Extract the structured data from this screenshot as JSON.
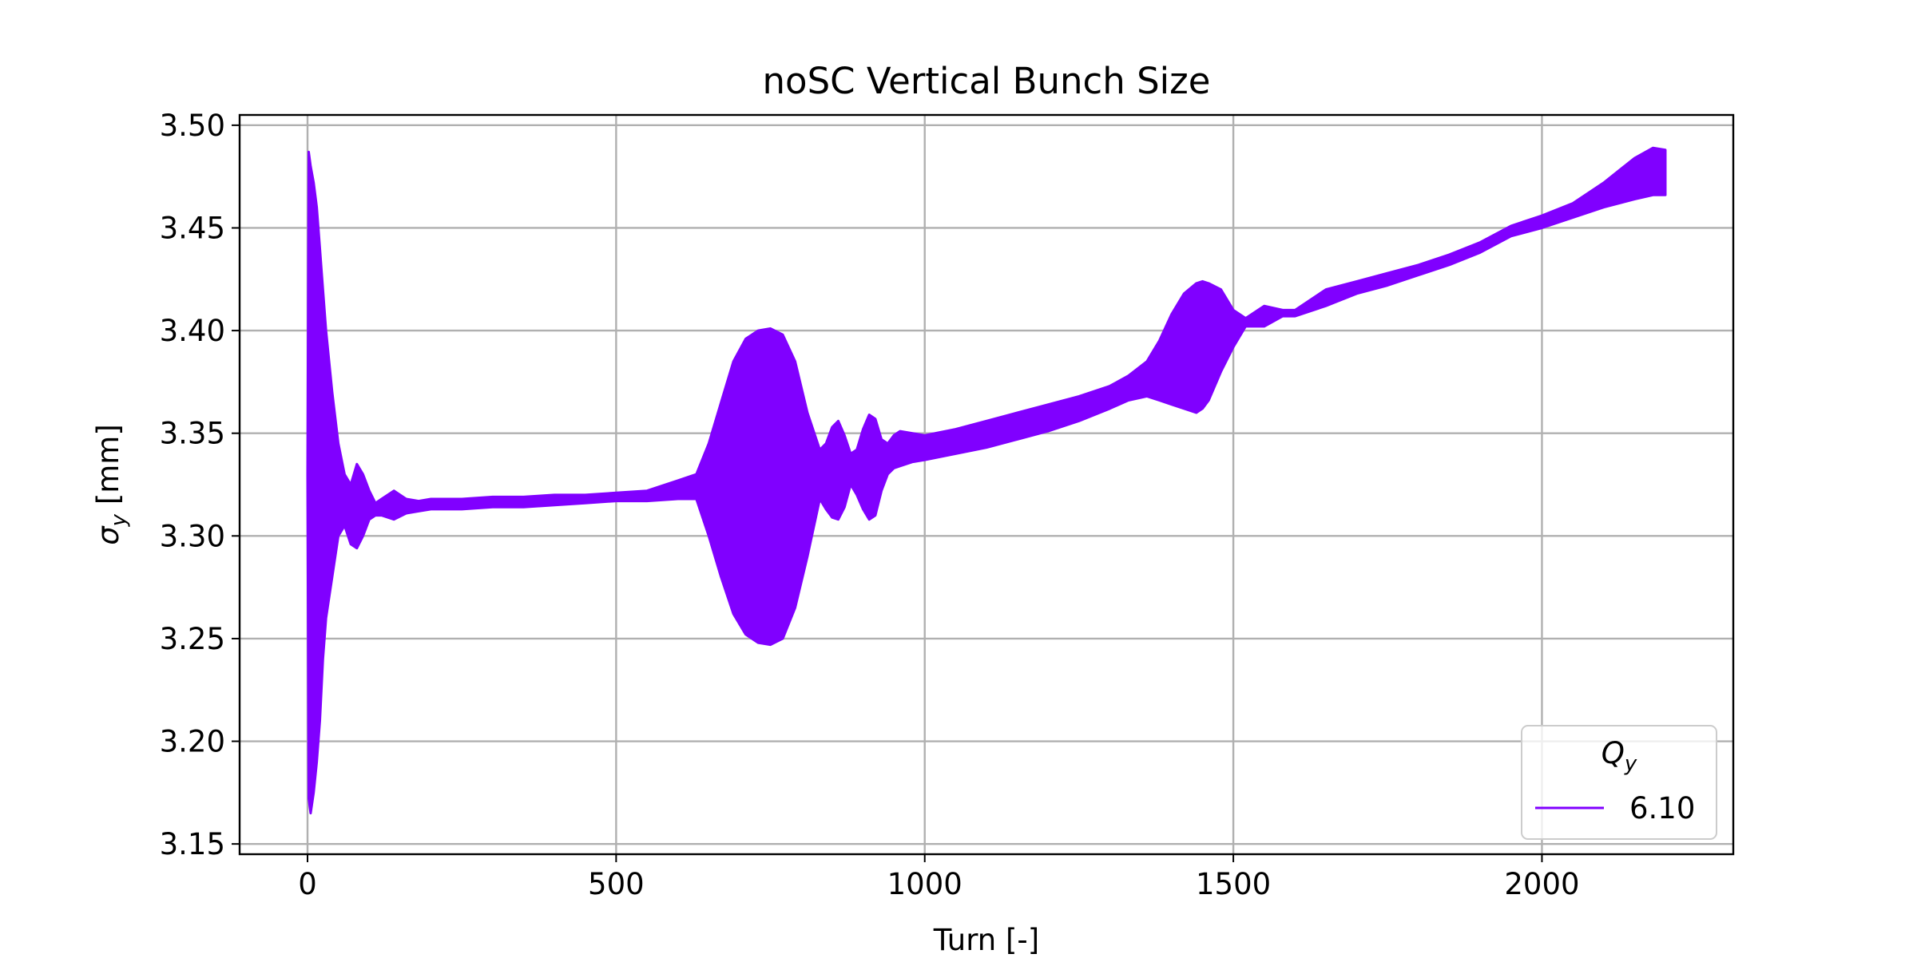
{
  "chart_data": {
    "type": "line",
    "title": "noSC Vertical Bunch Size",
    "xlabel": "Turn [-]",
    "ylabel_symbol": "σ",
    "ylabel_subscript": "y",
    "ylabel_unit": " [mm]",
    "xlim": [
      -110,
      2310
    ],
    "ylim": [
      3.145,
      3.505
    ],
    "xticks": [
      0,
      500,
      1000,
      1500,
      2000
    ],
    "xtick_labels": [
      "0",
      "500",
      "1000",
      "1500",
      "2000"
    ],
    "yticks": [
      3.15,
      3.2,
      3.25,
      3.3,
      3.35,
      3.4,
      3.45,
      3.5
    ],
    "ytick_labels": [
      "3.15",
      "3.20",
      "3.25",
      "3.30",
      "3.35",
      "3.40",
      "3.45",
      "3.50"
    ],
    "grid": true,
    "legend": {
      "placement": "lower-right",
      "title_symbol": "Q",
      "title_subscript": "y",
      "entries": [
        "6.10"
      ]
    },
    "series": [
      {
        "name": "6.10",
        "color": "#8000ff",
        "x": [
          0,
          2,
          5,
          10,
          15,
          20,
          25,
          30,
          40,
          50,
          60,
          70,
          80,
          90,
          100,
          110,
          120,
          140,
          160,
          180,
          200,
          250,
          300,
          350,
          400,
          450,
          500,
          550,
          600,
          630,
          650,
          670,
          690,
          710,
          730,
          750,
          770,
          790,
          810,
          830,
          840,
          850,
          860,
          870,
          880,
          890,
          900,
          910,
          920,
          930,
          940,
          950,
          960,
          980,
          1000,
          1050,
          1100,
          1150,
          1200,
          1250,
          1300,
          1330,
          1360,
          1380,
          1400,
          1420,
          1440,
          1450,
          1460,
          1480,
          1500,
          1520,
          1550,
          1580,
          1600,
          1650,
          1700,
          1750,
          1800,
          1850,
          1900,
          1950,
          2000,
          2050,
          2100,
          2150,
          2180,
          2200
        ],
        "y_upper": [
          3.33,
          3.487,
          3.48,
          3.472,
          3.46,
          3.44,
          3.42,
          3.4,
          3.37,
          3.345,
          3.33,
          3.325,
          3.335,
          3.33,
          3.322,
          3.316,
          3.318,
          3.322,
          3.318,
          3.317,
          3.318,
          3.318,
          3.319,
          3.319,
          3.32,
          3.32,
          3.321,
          3.322,
          3.327,
          3.33,
          3.345,
          3.365,
          3.385,
          3.396,
          3.4,
          3.401,
          3.398,
          3.385,
          3.36,
          3.342,
          3.345,
          3.353,
          3.356,
          3.349,
          3.34,
          3.342,
          3.352,
          3.359,
          3.357,
          3.347,
          3.345,
          3.349,
          3.351,
          3.35,
          3.349,
          3.352,
          3.356,
          3.36,
          3.364,
          3.368,
          3.373,
          3.378,
          3.385,
          3.395,
          3.408,
          3.418,
          3.423,
          3.424,
          3.423,
          3.42,
          3.41,
          3.406,
          3.412,
          3.41,
          3.41,
          3.42,
          3.424,
          3.428,
          3.432,
          3.437,
          3.443,
          3.451,
          3.456,
          3.462,
          3.472,
          3.484,
          3.489,
          3.488
        ],
        "y_lower": [
          3.33,
          3.172,
          3.165,
          3.175,
          3.19,
          3.21,
          3.24,
          3.26,
          3.28,
          3.3,
          3.305,
          3.296,
          3.294,
          3.3,
          3.308,
          3.31,
          3.31,
          3.308,
          3.311,
          3.312,
          3.313,
          3.313,
          3.314,
          3.314,
          3.315,
          3.316,
          3.317,
          3.317,
          3.318,
          3.318,
          3.3,
          3.28,
          3.262,
          3.252,
          3.248,
          3.247,
          3.25,
          3.265,
          3.29,
          3.318,
          3.313,
          3.309,
          3.308,
          3.314,
          3.325,
          3.32,
          3.313,
          3.308,
          3.31,
          3.322,
          3.33,
          3.333,
          3.334,
          3.336,
          3.337,
          3.34,
          3.343,
          3.347,
          3.351,
          3.356,
          3.362,
          3.366,
          3.368,
          3.366,
          3.364,
          3.362,
          3.36,
          3.362,
          3.366,
          3.38,
          3.392,
          3.402,
          3.402,
          3.407,
          3.407,
          3.412,
          3.418,
          3.422,
          3.427,
          3.432,
          3.438,
          3.446,
          3.45,
          3.455,
          3.46,
          3.464,
          3.466,
          3.466
        ]
      }
    ]
  }
}
